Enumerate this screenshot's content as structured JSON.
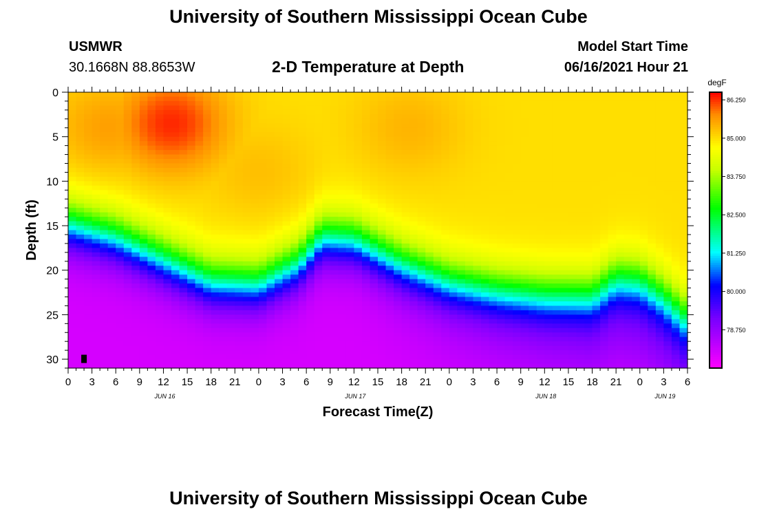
{
  "header": {
    "title_top": "University of Southern Mississippi Ocean Cube",
    "title_bottom": "University of Southern Mississippi Ocean Cube",
    "station": "USMWR",
    "coords": "30.1668N  88.8653W",
    "plot_title": "2-D Temperature at Depth",
    "model_start_label": "Model Start Time",
    "model_start_value": "06/16/2021 Hour 21"
  },
  "chart_data": {
    "type": "heatmap",
    "title": "2-D Temperature at Depth",
    "xlabel": "Forecast Time(Z)",
    "ylabel": "Depth (ft)",
    "x_tick_labels": [
      "0",
      "3",
      "6",
      "9",
      "12",
      "15",
      "18",
      "21",
      "0",
      "3",
      "6",
      "9",
      "12",
      "15",
      "18",
      "21",
      "0",
      "3",
      "6",
      "9",
      "12",
      "15",
      "18",
      "21",
      "0",
      "3",
      "6"
    ],
    "x_range_hours": [
      0,
      78
    ],
    "day_labels": [
      {
        "label": "JUN 16",
        "hour": 12
      },
      {
        "label": "JUN 17",
        "hour": 36
      },
      {
        "label": "JUN 18",
        "hour": 60
      },
      {
        "label": "JUN 19",
        "hour": 75
      }
    ],
    "y_ticks": [
      0,
      5,
      10,
      15,
      20,
      25,
      30
    ],
    "y_range_ft": [
      0,
      31
    ],
    "colorbar": {
      "unit": "degF",
      "tick_labels": [
        "86.250",
        "85.000",
        "83.750",
        "82.500",
        "81.250",
        "80.000",
        "78.750"
      ],
      "tick_values": [
        86.25,
        85.0,
        83.75,
        82.5,
        81.25,
        80.0,
        78.75
      ],
      "range": [
        77.5,
        86.5
      ]
    },
    "thermocline_center_ft": [
      [
        0,
        15.0
      ],
      [
        6,
        16.5
      ],
      [
        12,
        19.0
      ],
      [
        18,
        21.5
      ],
      [
        24,
        21.8
      ],
      [
        29,
        19.5
      ],
      [
        32,
        16.5
      ],
      [
        36,
        16.8
      ],
      [
        42,
        19.5
      ],
      [
        48,
        21.5
      ],
      [
        54,
        22.5
      ],
      [
        60,
        23.0
      ],
      [
        66,
        23.0
      ],
      [
        69,
        21.0
      ],
      [
        72,
        21.2
      ],
      [
        75,
        23.0
      ],
      [
        78,
        25.5
      ]
    ],
    "surface_temp_points": [
      {
        "hour": 13,
        "depth_ft": 3.5,
        "degF": 86.3
      },
      {
        "hour": 5,
        "depth_ft": 4,
        "degF": 85.6
      },
      {
        "hour": 24,
        "depth_ft": 9,
        "degF": 85.3
      },
      {
        "hour": 43,
        "depth_ft": 4,
        "degF": 85.4
      },
      {
        "hour": 62,
        "depth_ft": 5,
        "degF": 84.9
      },
      {
        "hour": 68,
        "depth_ft": 3,
        "degF": 84.5
      },
      {
        "hour": 30,
        "depth_ft": 1,
        "degF": 84.7
      }
    ],
    "surface_base_degF": 85.0,
    "deep_min_degF": 78.0
  }
}
